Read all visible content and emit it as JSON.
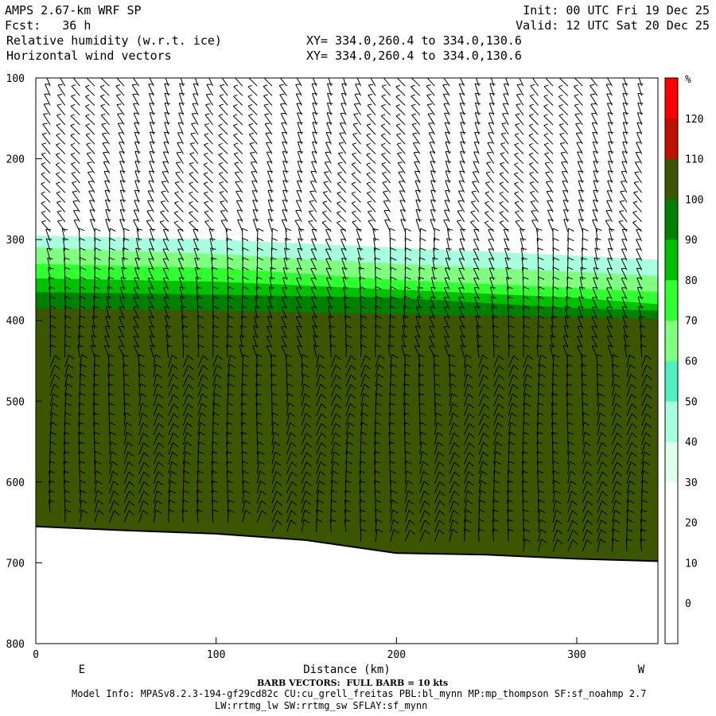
{
  "header": {
    "model": "AMPS 2.67-km WRF SP",
    "fcst_label": "Fcst:",
    "fcst_value": "36 h",
    "field1": "Relative humidity (w.r.t. ice)",
    "field2": "Horizontal wind vectors",
    "init": "Init: 00 UTC Fri 19 Dec 25",
    "valid": "Valid: 12 UTC Sat 20 Dec 25",
    "xy1": "XY= 334.0,260.4 to 334.0,130.6",
    "xy2": "XY= 334.0,260.4 to 334.0,130.6"
  },
  "footer": {
    "barb_note": "BARB VECTORS:  FULL BARB = 10 kts",
    "model_info": "Model Info: MPASv8.2.3-194-gf29cd82c CU:cu_grell_freitas PBL:bl_mynn MP:mp_thompson SF:sf_noahmp 2.7",
    "model_info2": "LW:rrtmg_lw SW:rrtmg_sw SFLAY:sf_mynn"
  },
  "chart_data": {
    "type": "heatmap",
    "xlabel": "Distance (km)",
    "ylabel": "",
    "x_ticks": [
      0,
      100,
      200,
      300
    ],
    "y_ticks": [
      100,
      200,
      300,
      400,
      500,
      600,
      700,
      800
    ],
    "xlim": [
      0,
      345
    ],
    "ylim": [
      800,
      100
    ],
    "end_labels": {
      "left": "E",
      "right": "W"
    },
    "colorbar": {
      "unit": "%",
      "levels": [
        0,
        10,
        20,
        30,
        40,
        50,
        60,
        70,
        80,
        90,
        100,
        110,
        120
      ],
      "colors": [
        "#ffffff",
        "#ffffff",
        "#ffffff",
        "#ffffff",
        "#e0ffee",
        "#a8ffe0",
        "#50f0c0",
        "#80ff80",
        "#30ff30",
        "#00c000",
        "#008000",
        "#3c5500",
        "#c01000",
        "#ff0000"
      ]
    },
    "terrain_pressure": [
      [
        0,
        655
      ],
      [
        50,
        660
      ],
      [
        100,
        664
      ],
      [
        150,
        672
      ],
      [
        200,
        688
      ],
      [
        250,
        690
      ],
      [
        300,
        695
      ],
      [
        345,
        698
      ]
    ],
    "rh_layers": [
      {
        "rh": 40,
        "top": [
          [
            0,
            295
          ],
          [
            100,
            300
          ],
          [
            200,
            310
          ],
          [
            300,
            320
          ],
          [
            345,
            325
          ]
        ]
      },
      {
        "rh": 60,
        "top": [
          [
            0,
            310
          ],
          [
            100,
            318
          ],
          [
            200,
            330
          ],
          [
            300,
            340
          ],
          [
            345,
            345
          ]
        ]
      },
      {
        "rh": 75,
        "top": [
          [
            0,
            330
          ],
          [
            100,
            335
          ],
          [
            200,
            350
          ],
          [
            300,
            360
          ],
          [
            345,
            365
          ]
        ]
      },
      {
        "rh": 85,
        "top": [
          [
            0,
            348
          ],
          [
            100,
            352
          ],
          [
            200,
            362
          ],
          [
            300,
            372
          ],
          [
            345,
            380
          ]
        ]
      },
      {
        "rh": 95,
        "top": [
          [
            0,
            365
          ],
          [
            100,
            368
          ],
          [
            200,
            372
          ],
          [
            300,
            385
          ],
          [
            345,
            388
          ]
        ]
      },
      {
        "rh": 105,
        "top": [
          [
            0,
            385
          ],
          [
            100,
            388
          ],
          [
            200,
            392
          ],
          [
            300,
            396
          ],
          [
            345,
            398
          ]
        ]
      }
    ]
  }
}
